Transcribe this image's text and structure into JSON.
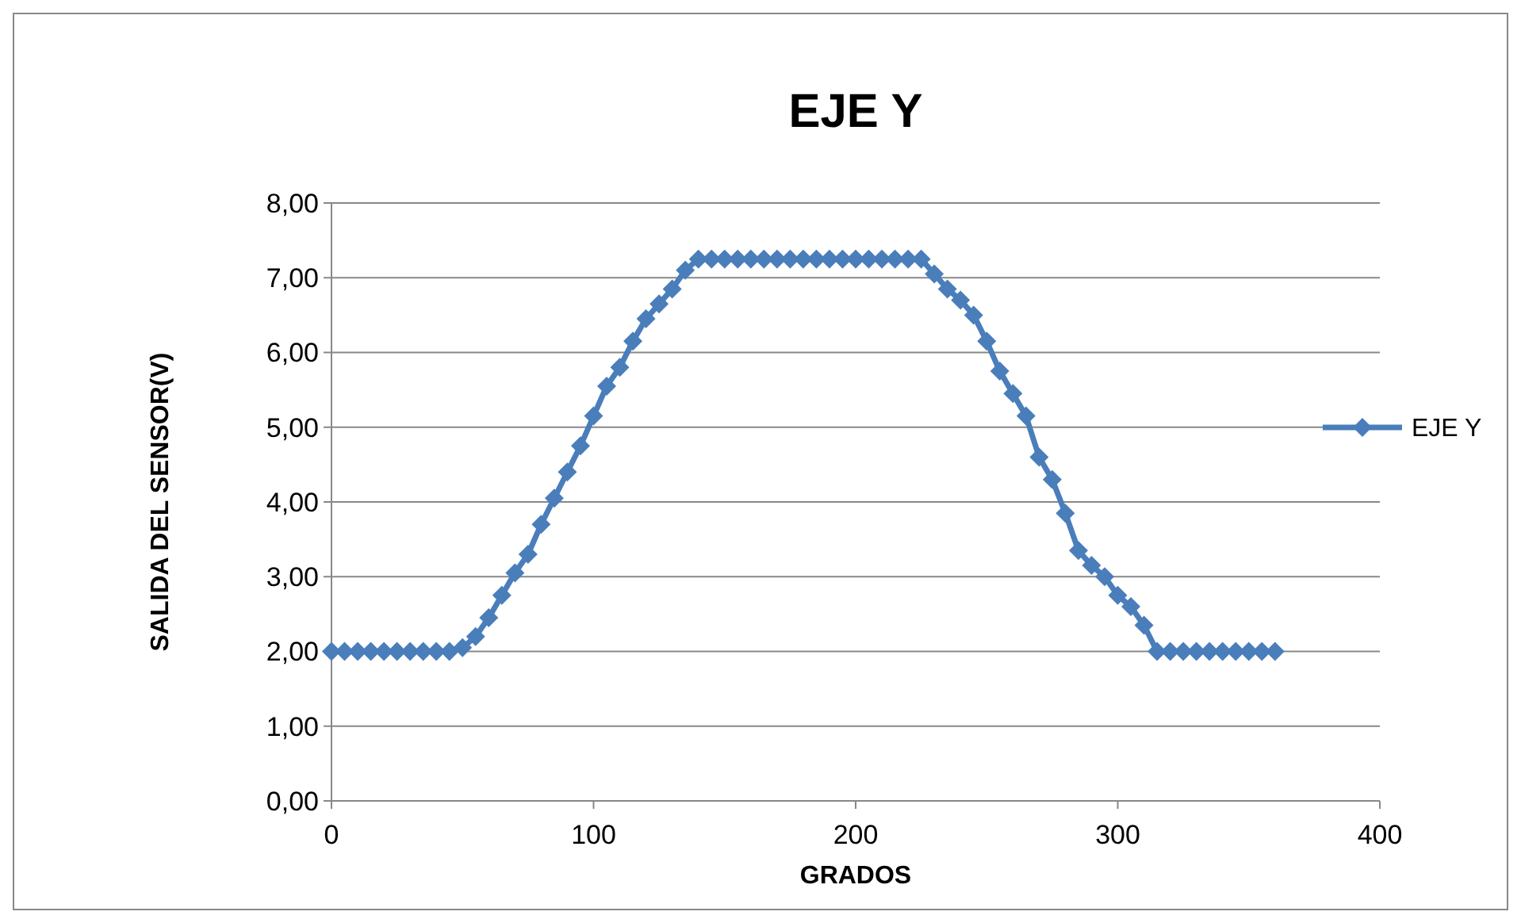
{
  "chart_data": {
    "type": "line",
    "title": "EJE Y",
    "xlabel": "GRADOS",
    "ylabel": "SALIDA DEL SENSOR(V)",
    "xlim": [
      0,
      400
    ],
    "xticks": [
      0,
      100,
      200,
      300,
      400
    ],
    "ylim": [
      0,
      8
    ],
    "yticks": [
      {
        "value": 0,
        "label": "0,00"
      },
      {
        "value": 1,
        "label": "1,00"
      },
      {
        "value": 2,
        "label": "2,00"
      },
      {
        "value": 3,
        "label": "3,00"
      },
      {
        "value": 4,
        "label": "4,00"
      },
      {
        "value": 5,
        "label": "5,00"
      },
      {
        "value": 6,
        "label": "6,00"
      },
      {
        "value": 7,
        "label": "7,00"
      },
      {
        "value": 8,
        "label": "8,00"
      }
    ],
    "grid": "y",
    "legend": "right",
    "marker": "diamond",
    "line_style": "solid",
    "x": [
      0,
      5,
      10,
      15,
      20,
      25,
      30,
      35,
      40,
      45,
      50,
      55,
      60,
      65,
      70,
      75,
      80,
      85,
      90,
      95,
      100,
      105,
      110,
      115,
      120,
      125,
      130,
      135,
      140,
      145,
      150,
      155,
      160,
      165,
      170,
      175,
      180,
      185,
      190,
      195,
      200,
      205,
      210,
      215,
      220,
      225,
      230,
      235,
      240,
      245,
      250,
      255,
      260,
      265,
      270,
      275,
      280,
      285,
      290,
      295,
      300,
      305,
      310,
      315,
      320,
      325,
      330,
      335,
      340,
      345,
      350,
      355,
      360
    ],
    "series": [
      {
        "name": "EJE Y",
        "color": "#4a7ebb",
        "values": [
          2,
          2,
          2,
          2,
          2,
          2,
          2,
          2,
          2,
          2,
          2.05,
          2.2,
          2.45,
          2.75,
          3.05,
          3.3,
          3.7,
          4.05,
          4.4,
          4.75,
          5.15,
          5.55,
          5.8,
          6.15,
          6.45,
          6.65,
          6.85,
          7.1,
          7.25,
          7.25,
          7.25,
          7.25,
          7.25,
          7.25,
          7.25,
          7.25,
          7.25,
          7.25,
          7.25,
          7.25,
          7.25,
          7.25,
          7.25,
          7.25,
          7.25,
          7.25,
          7.05,
          6.85,
          6.7,
          6.5,
          6.15,
          5.75,
          5.45,
          5.15,
          4.6,
          4.3,
          3.85,
          3.35,
          3.15,
          3,
          2.75,
          2.6,
          2.35,
          2,
          2,
          2,
          2,
          2,
          2,
          2,
          2,
          2,
          2
        ]
      }
    ]
  }
}
